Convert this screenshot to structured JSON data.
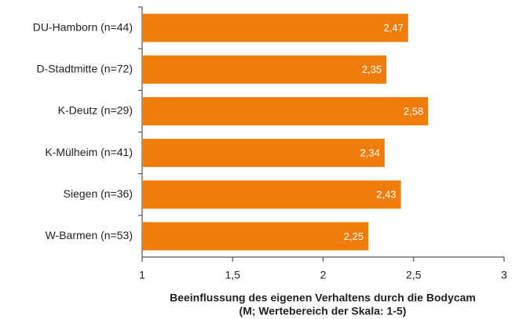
{
  "chart_data": {
    "type": "barh",
    "categories": [
      "DU-Hamborn (n=44)",
      "D-Stadtmitte (n=72)",
      "K-Deutz (n=29)",
      "K-Mülheim (n=41)",
      "Siegen (n=36)",
      "W-Barmen (n=53)"
    ],
    "values": [
      2.47,
      2.35,
      2.58,
      2.34,
      2.43,
      2.25
    ],
    "value_labels": [
      "2,47",
      "2,35",
      "2,58",
      "2,34",
      "2,43",
      "2,25"
    ],
    "color": "#f07d0a",
    "xlim": [
      1,
      3
    ],
    "xticks": [
      1,
      {
        "value": 1.5,
        "label": "1,5"
      },
      2,
      {
        "value": 2.5,
        "label": "2,5"
      },
      3
    ],
    "xlabel": [
      "Beeinflussung des eigenen Verhaltens durch die Bodycam",
      "(M; Wertebereich der Skala: 1-5)"
    ]
  }
}
